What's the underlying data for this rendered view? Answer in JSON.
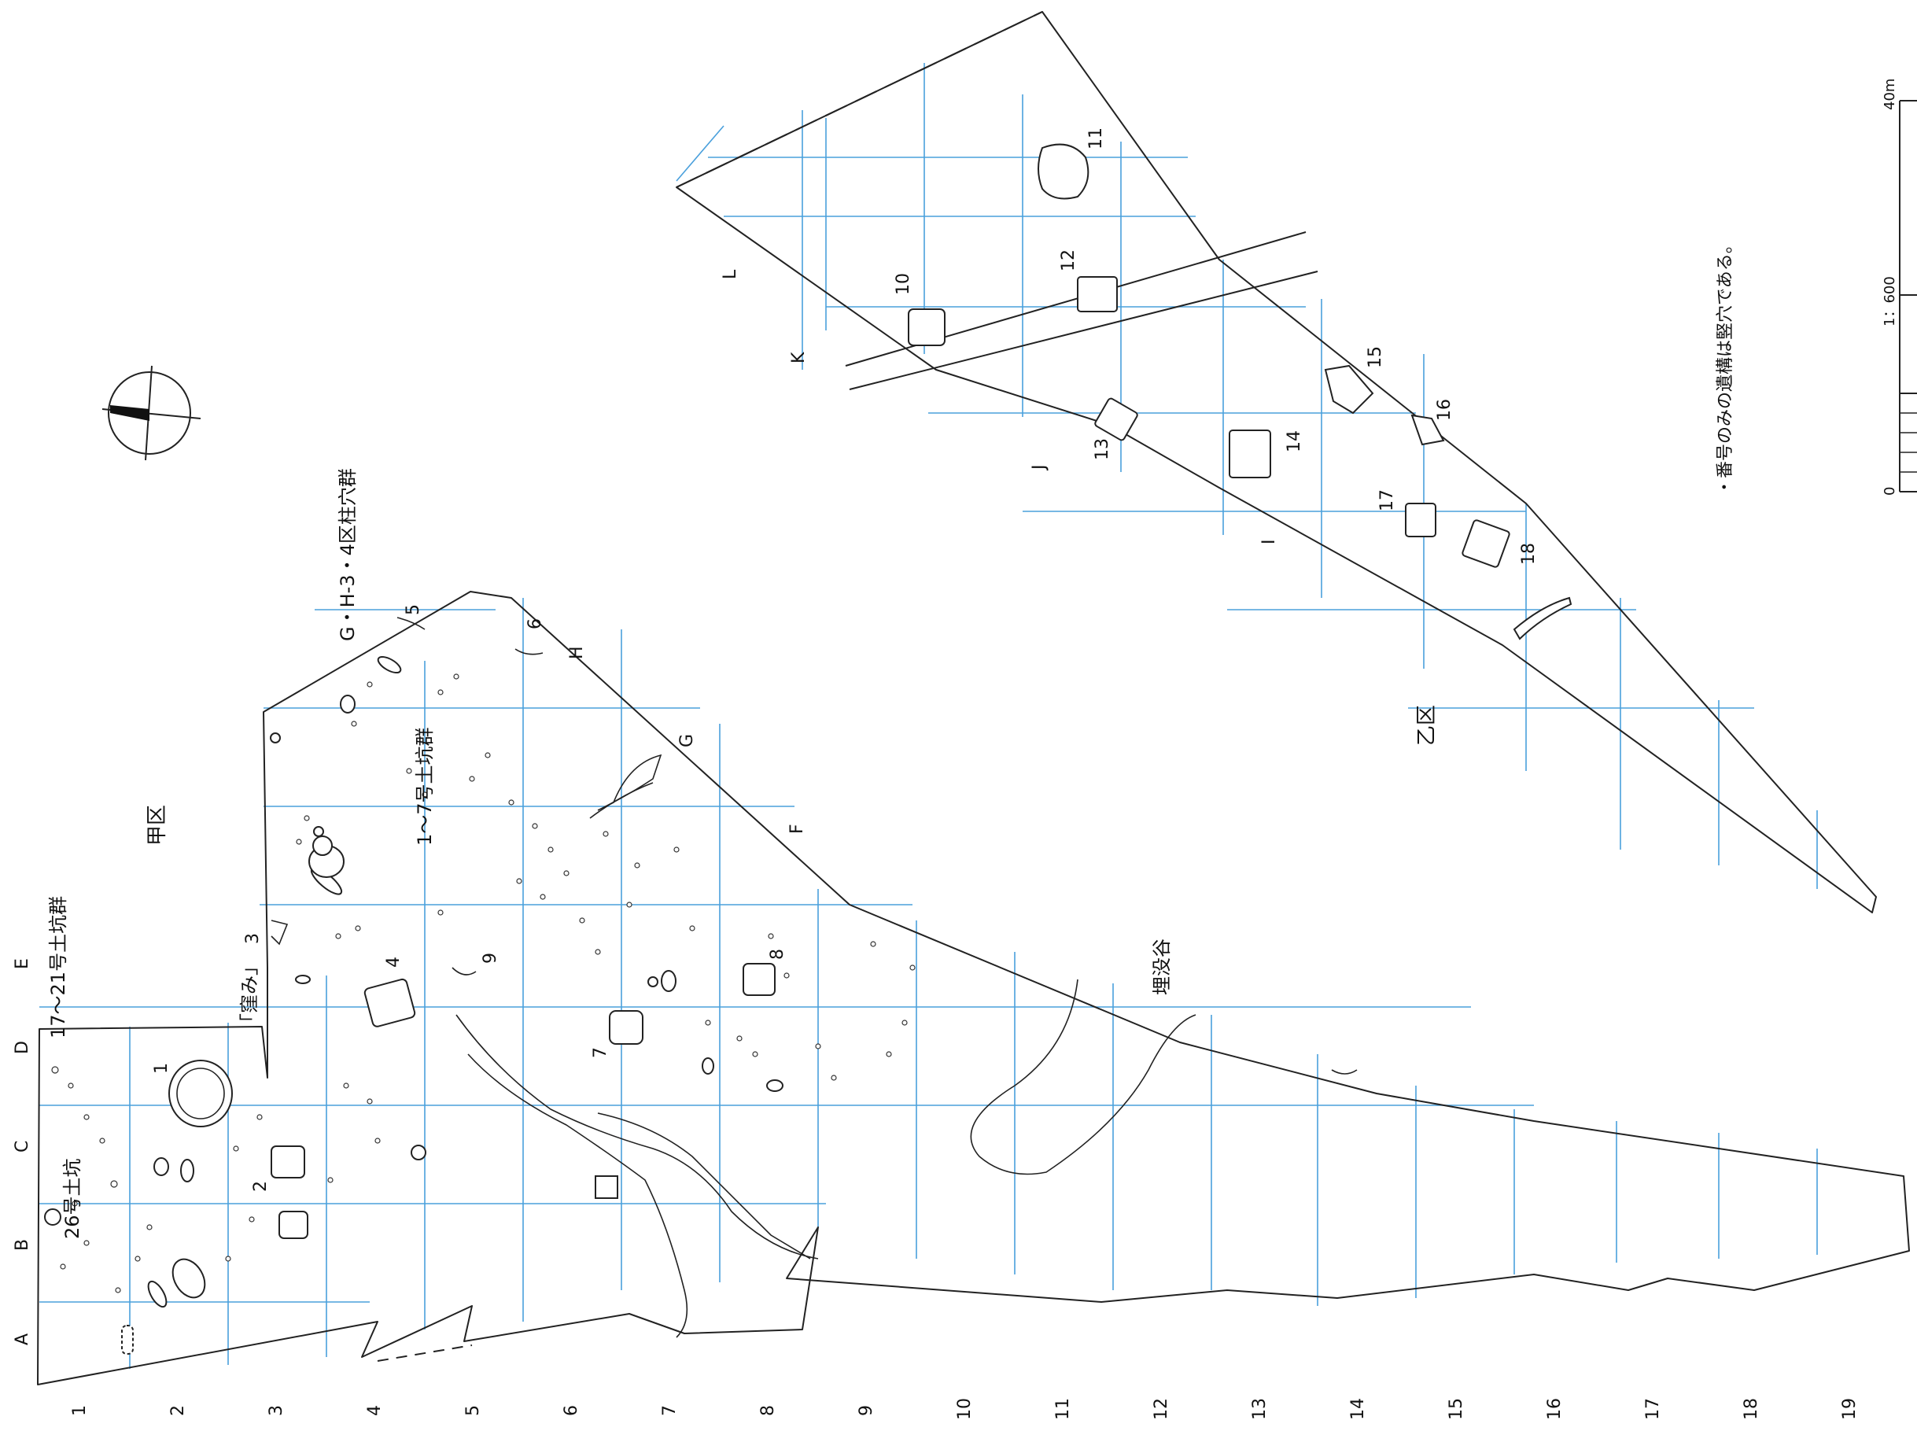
{
  "zones": {
    "kou": "甲区",
    "otsu": "乙区"
  },
  "annotations": {
    "pit_17_21": "17～21号土坑群",
    "pit_26": "26号土坑",
    "pit_1_7": "1～7号土坑群",
    "postholes": "G・H-3・4区柱穴群",
    "depression": "「窪み」",
    "buried_valley": "埋没谷",
    "note": "・番号のみの遺構は竪穴である。"
  },
  "scale": {
    "ratio": "1：600",
    "max": "40m",
    "zero": "0"
  },
  "grid_letters": [
    "A",
    "B",
    "C",
    "D",
    "E",
    "F",
    "G",
    "H",
    "I",
    "J",
    "K",
    "L"
  ],
  "grid_numbers": [
    "1",
    "2",
    "3",
    "4",
    "5",
    "6",
    "7",
    "8",
    "9",
    "10",
    "11",
    "12",
    "13",
    "14",
    "15",
    "16",
    "17",
    "18",
    "19"
  ],
  "features": [
    "1",
    "2",
    "3",
    "4",
    "5",
    "6",
    "7",
    "8",
    "9",
    "10",
    "11",
    "12",
    "13",
    "14",
    "15",
    "16",
    "17",
    "18"
  ]
}
